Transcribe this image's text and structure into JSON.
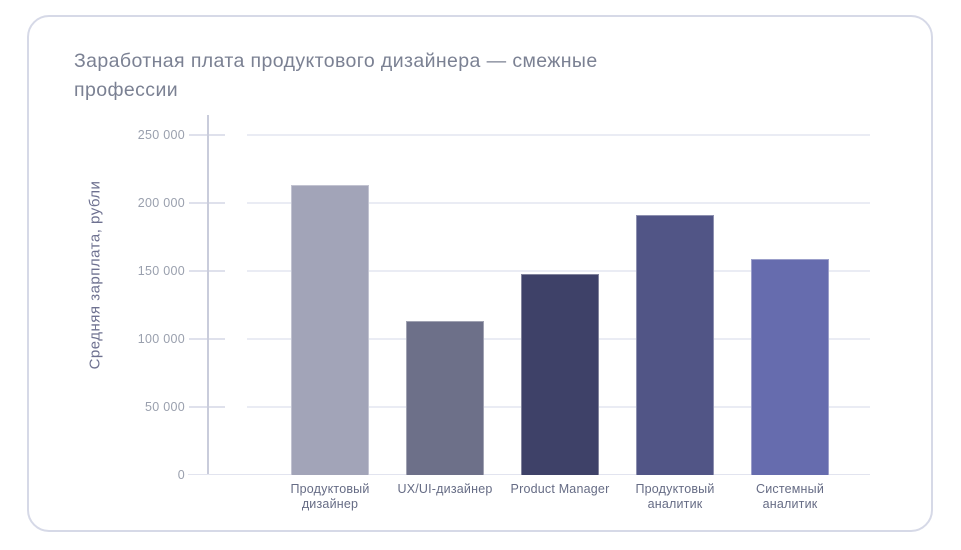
{
  "chart_data": {
    "type": "bar",
    "title": "Заработная плата продуктового дизайнера — смежные профессии",
    "title_lines": [
      "Заработная плата продуктового дизайнера — смежные",
      "профессии"
    ],
    "ylabel": "Средняя зарплата, рубли",
    "xlabel": "",
    "categories": [
      "Продуктовый дизайнер",
      "UX/UI-дизайнер",
      "Product Manager",
      "Продуктовый аналитик",
      "Системный аналитик"
    ],
    "category_lines": [
      [
        "Продуктовый",
        "дизайнер"
      ],
      [
        "UX/UI-дизайнер"
      ],
      [
        "Product Manager"
      ],
      [
        "Продуктовый",
        "аналитик"
      ],
      [
        "Системный",
        "аналитик"
      ]
    ],
    "values": [
      213000,
      113000,
      148000,
      191000,
      159000
    ],
    "bar_colors": [
      "#a2a4b8",
      "#6d7089",
      "#3e4168",
      "#515586",
      "#666cae"
    ],
    "ylim": [
      0,
      250000
    ],
    "ytick_step": 50000,
    "ytick_labels": [
      "0",
      "50 000",
      "100 000",
      "150 000",
      "200 000",
      "250 000"
    ],
    "grid": "horizontal",
    "legend": "none"
  },
  "theme": {
    "background": "#ffffff",
    "card_background": "#ffffff",
    "card_border": "#d6d9e7",
    "title_color": "#7b8193",
    "ylabel_color": "#6e7190",
    "tick_label_color": "#9aa0ae",
    "category_label_color": "#666c85",
    "axis_line_color": "#c9ccdb",
    "gridline_color": "#eaecf4",
    "baseline_color": "#e2e4ef"
  }
}
